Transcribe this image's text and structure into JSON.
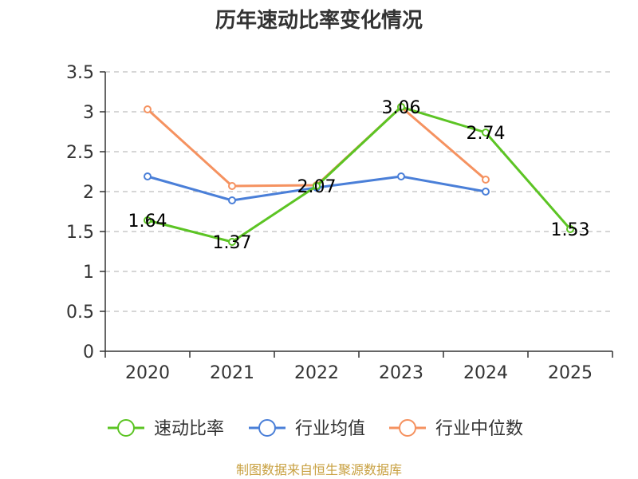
{
  "chart_data": {
    "type": "line",
    "title": "历年速动比率变化情况",
    "categories": [
      "2020",
      "2021",
      "2022",
      "2023",
      "2024",
      "2025"
    ],
    "ylim": [
      0,
      3.5
    ],
    "yticks": [
      0,
      0.5,
      1,
      1.5,
      2,
      2.5,
      3,
      3.5
    ],
    "ytick_labels": [
      "0",
      "0.5",
      "1",
      "1.5",
      "2",
      "2.5",
      "3",
      "3.5"
    ],
    "grid": true,
    "legend_position": "bottom",
    "series": [
      {
        "name": "速动比率",
        "color": "#5cc424",
        "values": [
          1.64,
          1.37,
          2.07,
          3.06,
          2.74,
          1.53
        ],
        "labels": [
          "1.64",
          "1.37",
          "2.07",
          "3.06",
          "2.74",
          "1.53"
        ]
      },
      {
        "name": "行业均值",
        "color": "#4a7fd8",
        "values": [
          2.19,
          1.89,
          2.05,
          2.19,
          2.0,
          null
        ]
      },
      {
        "name": "行业中位数",
        "color": "#f59260",
        "values": [
          3.03,
          2.07,
          2.08,
          3.06,
          2.15,
          null
        ]
      }
    ]
  },
  "footer": {
    "source": "制图数据来自恒生聚源数据库"
  }
}
